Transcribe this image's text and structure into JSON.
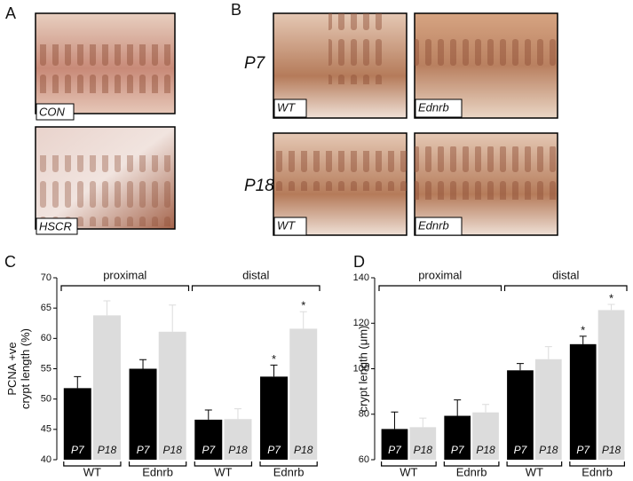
{
  "panels": [
    {
      "letter": "A",
      "images": [
        "CON",
        "HSCR"
      ]
    },
    {
      "letter": "B",
      "rows": [
        {
          "label": "P7",
          "images": [
            "WT",
            "Ednrb"
          ]
        },
        {
          "label": "P18",
          "images": [
            "WT",
            "Ednrb"
          ]
        }
      ]
    }
  ],
  "chart_data": [
    {
      "type": "bar",
      "panel": "C",
      "ylabel": [
        "PCNA +ve",
        "crypt length (%)"
      ],
      "groups": [
        "proximal",
        "distal"
      ],
      "categories": [
        "WT",
        "Ednrb",
        "WT",
        "Ednrb"
      ],
      "series": [
        {
          "name": "P7",
          "color": "#000000",
          "values": [
            51.8,
            55.0,
            46.6,
            53.7
          ],
          "errors": [
            1.9,
            1.5,
            1.6,
            1.9
          ],
          "markers": [
            null,
            null,
            null,
            "*"
          ]
        },
        {
          "name": "P18",
          "color": "#dcdcdc",
          "values": [
            63.8,
            61.1,
            46.7,
            61.6
          ],
          "errors": [
            2.4,
            4.4,
            1.7,
            2.8
          ],
          "markers": [
            null,
            null,
            null,
            "*"
          ]
        }
      ],
      "ylim": [
        40,
        70
      ],
      "yticks": [
        40,
        45,
        50,
        55,
        60,
        65,
        70
      ]
    },
    {
      "type": "bar",
      "panel": "D",
      "ylabel": [
        "crypt length (μm)"
      ],
      "groups": [
        "proximal",
        "distal"
      ],
      "categories": [
        "WT",
        "Ednrb",
        "WT",
        "Ednrb"
      ],
      "series": [
        {
          "name": "P7",
          "color": "#000000",
          "values": [
            73.5,
            79.3,
            99.3,
            110.8
          ],
          "errors": [
            7.5,
            7.0,
            3.0,
            3.5
          ],
          "markers": [
            null,
            null,
            null,
            "*"
          ]
        },
        {
          "name": "P18",
          "color": "#dcdcdc",
          "values": [
            74.3,
            80.8,
            104.2,
            125.8
          ],
          "errors": [
            4.0,
            3.5,
            5.5,
            2.5
          ],
          "markers": [
            null,
            null,
            null,
            "*"
          ]
        }
      ],
      "ylim": [
        60,
        140
      ],
      "yticks": [
        60,
        80,
        100,
        120,
        140
      ]
    }
  ]
}
